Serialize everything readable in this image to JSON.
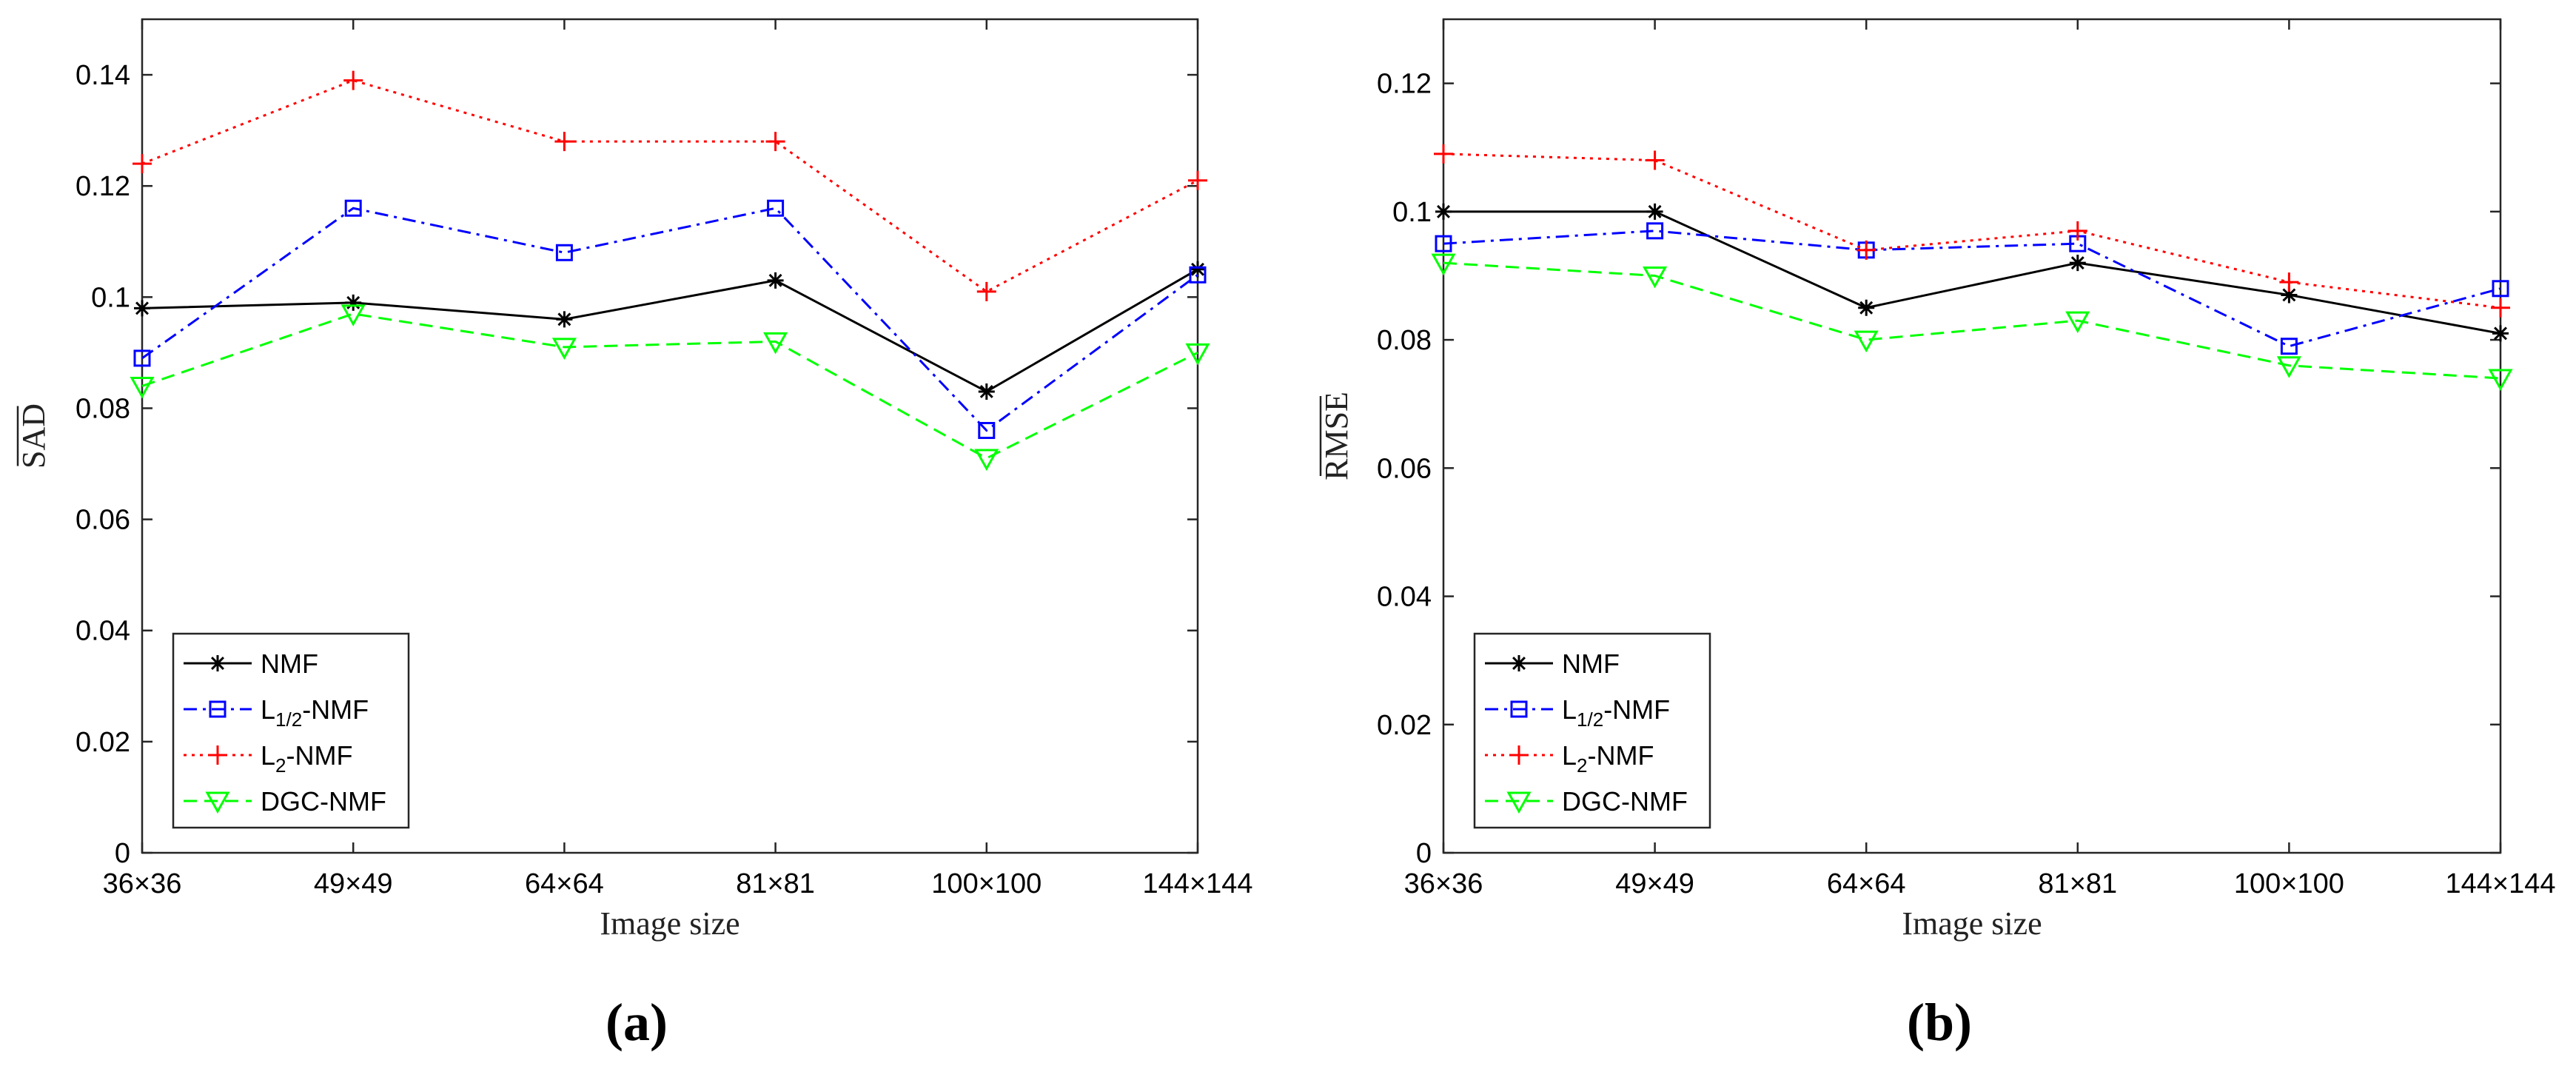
{
  "chart_data": [
    {
      "type": "line",
      "panel_label": "(a)",
      "xlabel": "Image size",
      "ylabel": "SAD",
      "ylabel_overline": true,
      "categories": [
        "36×36",
        "49×49",
        "64×64",
        "81×81",
        "100×100",
        "144×144"
      ],
      "ylim": [
        0,
        0.15
      ],
      "yticks": [
        0,
        0.02,
        0.04,
        0.06,
        0.08,
        0.1,
        0.12,
        0.14
      ],
      "ytick_labels": [
        "0",
        "0.02",
        "0.04",
        "0.06",
        "0.08",
        "0.1",
        "0.12",
        "0.14"
      ],
      "legend_position": "bottom-left",
      "series": [
        {
          "name": "NMF",
          "name_main": "NMF",
          "name_sub": "",
          "name_rest": "",
          "marker": "asterisk",
          "line": "solid",
          "color": "#000000",
          "values": [
            0.098,
            0.099,
            0.096,
            0.103,
            0.083,
            0.105
          ]
        },
        {
          "name": "L1/2-NMF",
          "name_main": "L",
          "name_sub": "1/2",
          "name_rest": "-NMF",
          "marker": "square",
          "line": "dashdot",
          "color": "#0000ff",
          "values": [
            0.089,
            0.116,
            0.108,
            0.116,
            0.076,
            0.104
          ]
        },
        {
          "name": "L2-NMF",
          "name_main": "L",
          "name_sub": "2",
          "name_rest": "-NMF",
          "marker": "plus",
          "line": "dotted",
          "color": "#ff0000",
          "values": [
            0.124,
            0.139,
            0.128,
            0.128,
            0.101,
            0.121
          ]
        },
        {
          "name": "DGC-NMF",
          "name_main": "DGC-NMF",
          "name_sub": "",
          "name_rest": "",
          "marker": "triangle-down",
          "line": "dashed",
          "color": "#00ff00",
          "values": [
            0.084,
            0.097,
            0.091,
            0.092,
            0.071,
            0.09
          ]
        }
      ]
    },
    {
      "type": "line",
      "panel_label": "(b)",
      "xlabel": "Image size",
      "ylabel": "RMSE",
      "ylabel_overline": true,
      "categories": [
        "36×36",
        "49×49",
        "64×64",
        "81×81",
        "100×100",
        "144×144"
      ],
      "ylim": [
        0,
        0.13
      ],
      "yticks": [
        0,
        0.02,
        0.04,
        0.06,
        0.08,
        0.1,
        0.12
      ],
      "ytick_labels": [
        "0",
        "0.02",
        "0.04",
        "0.06",
        "0.08",
        "0.1",
        "0.12"
      ],
      "legend_position": "bottom-left",
      "series": [
        {
          "name": "NMF",
          "name_main": "NMF",
          "name_sub": "",
          "name_rest": "",
          "marker": "asterisk",
          "line": "solid",
          "color": "#000000",
          "values": [
            0.1,
            0.1,
            0.085,
            0.092,
            0.087,
            0.081
          ]
        },
        {
          "name": "L1/2-NMF",
          "name_main": "L",
          "name_sub": "1/2",
          "name_rest": "-NMF",
          "marker": "square",
          "line": "dashdot",
          "color": "#0000ff",
          "values": [
            0.095,
            0.097,
            0.094,
            0.095,
            0.079,
            0.088
          ]
        },
        {
          "name": "L2-NMF",
          "name_main": "L",
          "name_sub": "2",
          "name_rest": "-NMF",
          "marker": "plus",
          "line": "dotted",
          "color": "#ff0000",
          "values": [
            0.109,
            0.108,
            0.094,
            0.097,
            0.089,
            0.085
          ]
        },
        {
          "name": "DGC-NMF",
          "name_main": "DGC-NMF",
          "name_sub": "",
          "name_rest": "",
          "marker": "triangle-down",
          "line": "dashed",
          "color": "#00ff00",
          "values": [
            0.092,
            0.09,
            0.08,
            0.083,
            0.076,
            0.074
          ]
        }
      ]
    }
  ]
}
